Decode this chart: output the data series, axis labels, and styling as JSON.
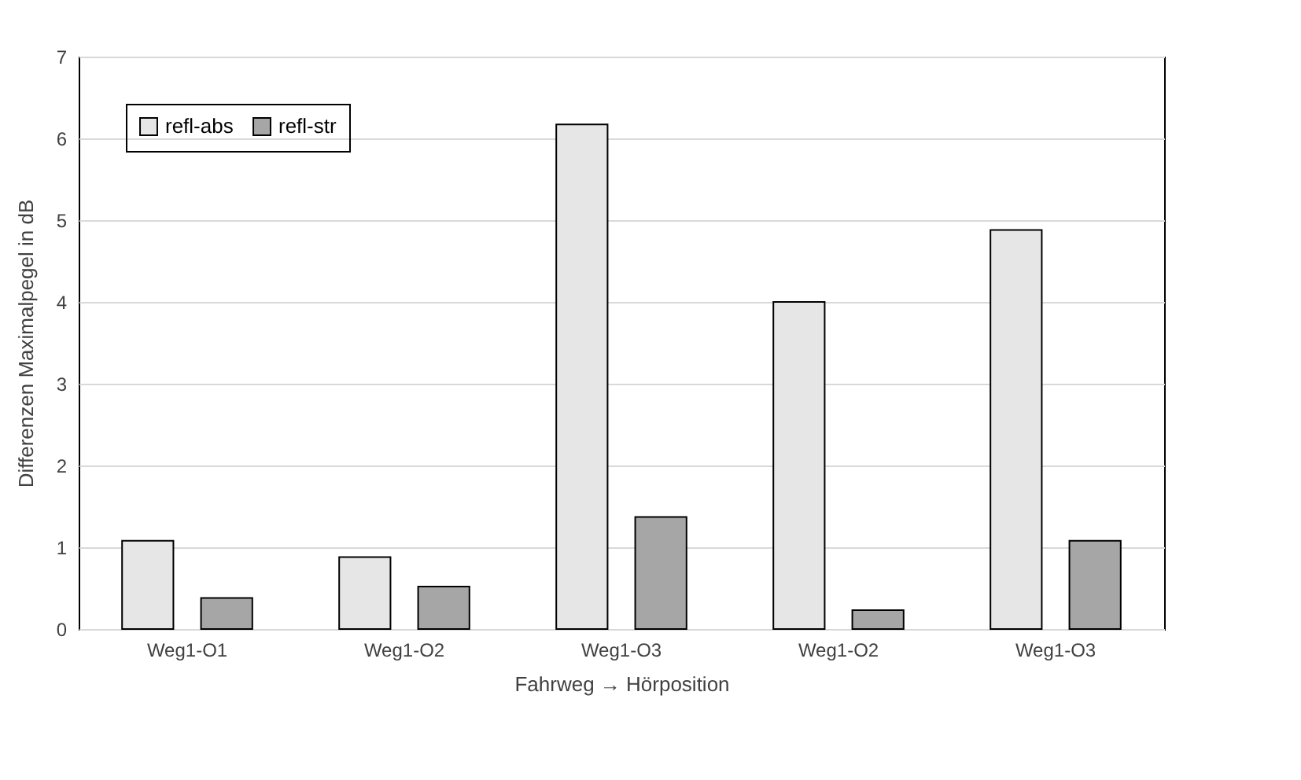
{
  "chart_data": {
    "type": "bar",
    "xlabel": "Fahrweg → Hörposition",
    "ylabel": "Differenzen Maximalpegel in dB",
    "categories": [
      "Weg1-O1",
      "Weg1-O2",
      "Weg1-O3",
      "Weg1-O2",
      "Weg1-O3"
    ],
    "series": [
      {
        "name": "refl-abs",
        "color": "#e6e6e6",
        "values": [
          1.08,
          0.88,
          6.17,
          4.0,
          4.88
        ]
      },
      {
        "name": "refl-str",
        "color": "#a6a6a6",
        "values": [
          0.38,
          0.52,
          1.37,
          0.23,
          1.08
        ]
      }
    ],
    "ylim": [
      0,
      7
    ],
    "yticks": [
      0,
      1,
      2,
      3,
      4,
      5,
      6,
      7
    ],
    "grid": "y",
    "legend": "top left"
  }
}
